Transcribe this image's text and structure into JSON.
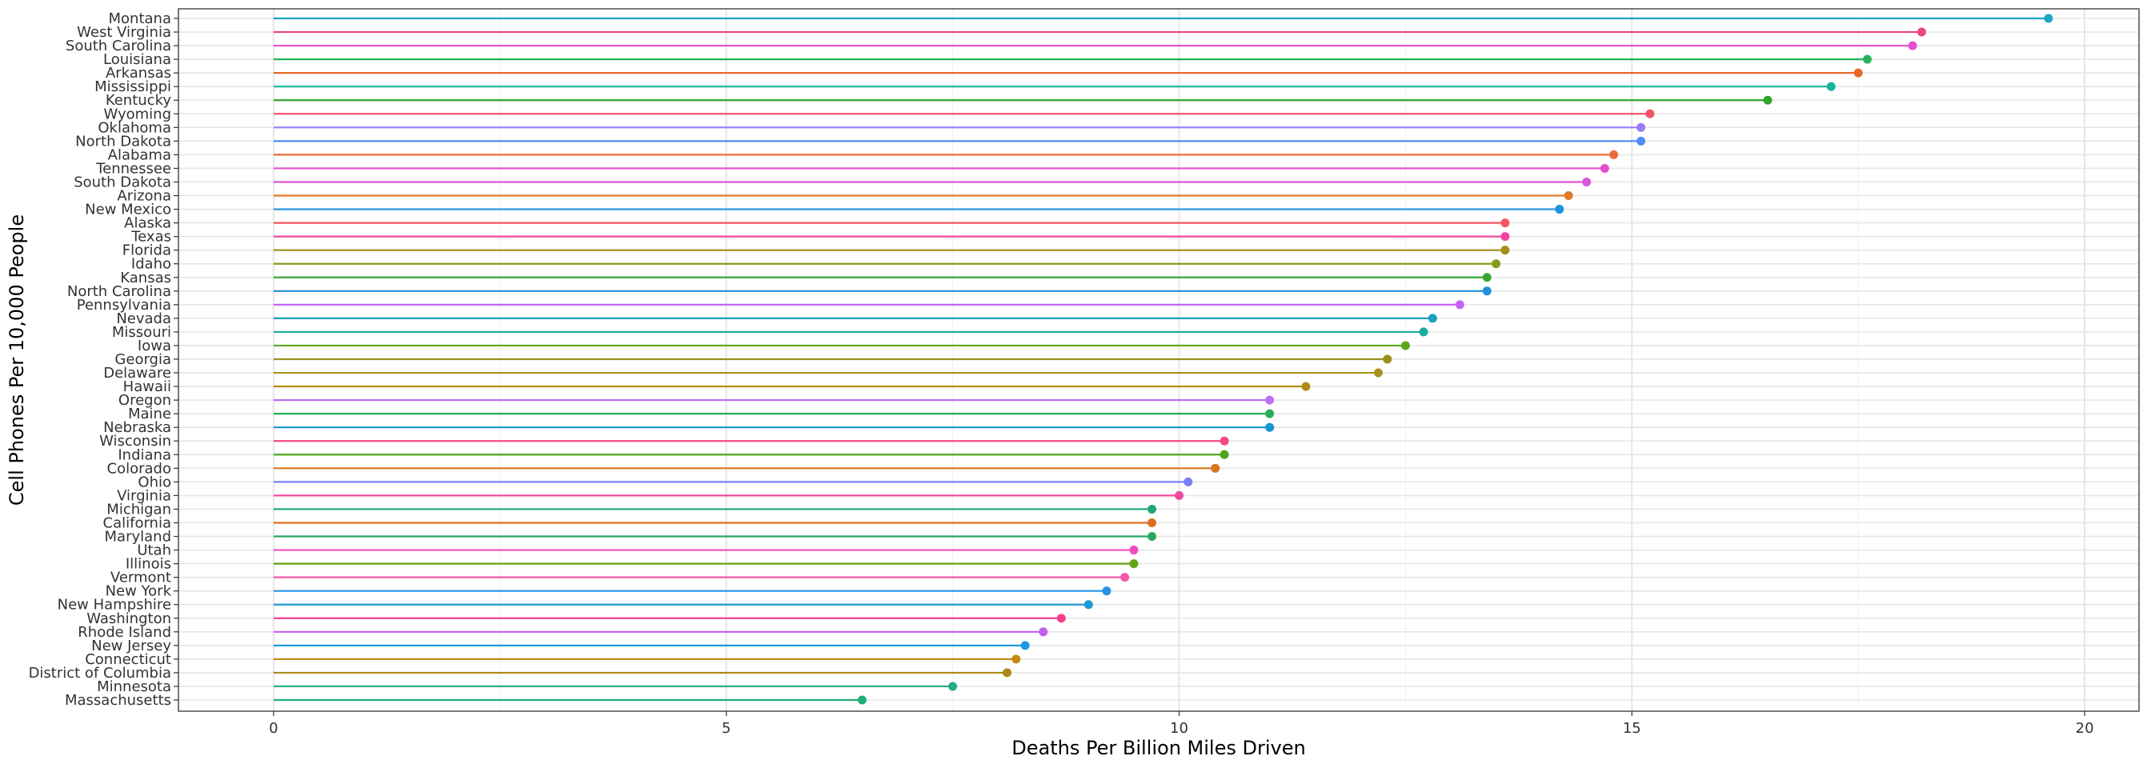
{
  "chart_data": {
    "type": "lollipop",
    "xlabel": "Deaths Per Billion Miles Driven",
    "ylabel": "Cell Phones Per 10,000 People",
    "xlim": [
      -1.05,
      20.6
    ],
    "xticks": [
      0,
      5,
      10,
      15,
      20
    ],
    "grid": true,
    "legend": "none",
    "categories": [
      "Montana",
      "West Virginia",
      "South Carolina",
      "Louisiana",
      "Arkansas",
      "Mississippi",
      "Kentucky",
      "Wyoming",
      "Oklahoma",
      "North Dakota",
      "Alabama",
      "Tennessee",
      "South Dakota",
      "Arizona",
      "New Mexico",
      "Alaska",
      "Texas",
      "Florida",
      "Idaho",
      "Kansas",
      "North Carolina",
      "Pennsylvania",
      "Nevada",
      "Missouri",
      "Iowa",
      "Georgia",
      "Delaware",
      "Hawaii",
      "Oregon",
      "Maine",
      "Nebraska",
      "Wisconsin",
      "Indiana",
      "Colorado",
      "Ohio",
      "Virginia",
      "Michigan",
      "California",
      "Maryland",
      "Utah",
      "Illinois",
      "Vermont",
      "New York",
      "New Hampshire",
      "Washington",
      "Rhode Island",
      "New Jersey",
      "Connecticut",
      "District of Columbia",
      "Minnesota",
      "Massachusetts"
    ],
    "values": [
      19.6,
      18.2,
      18.1,
      17.6,
      17.5,
      17.2,
      16.5,
      15.2,
      15.1,
      15.1,
      14.8,
      14.7,
      14.5,
      14.3,
      14.2,
      13.6,
      13.6,
      13.6,
      13.5,
      13.4,
      13.4,
      13.1,
      12.8,
      12.7,
      12.5,
      12.3,
      12.2,
      11.4,
      11.0,
      11.0,
      11.0,
      10.5,
      10.5,
      10.4,
      10.1,
      10.0,
      9.7,
      9.7,
      9.7,
      9.5,
      9.5,
      9.4,
      9.2,
      9.0,
      8.7,
      8.5,
      8.3,
      8.2,
      8.1,
      7.5,
      6.5
    ],
    "colors": [
      "#1da3c4",
      "#f0457a",
      "#e34fd0",
      "#26b35a",
      "#e8682f",
      "#17b39b",
      "#31a32a",
      "#f2526a",
      "#9a7cf4",
      "#4f8ef5",
      "#eb6e3a",
      "#e34fc9",
      "#d954d9",
      "#e07a2c",
      "#2291e0",
      "#f2575f",
      "#f245a0",
      "#a38e18",
      "#849d1d",
      "#3aa535",
      "#238fd6",
      "#c564ef",
      "#1ba1bf",
      "#19ab9d",
      "#5da71d",
      "#98911c",
      "#a6921b",
      "#b18a10",
      "#bf6ef5",
      "#27ad57",
      "#1596d1",
      "#f84a7e",
      "#4da416",
      "#d8771c",
      "#7c7ef7",
      "#f04a9e",
      "#1ca67a",
      "#e06c20",
      "#29a861",
      "#f04cc0",
      "#66a314",
      "#f556a8",
      "#2693e6",
      "#1c98d2",
      "#f53e8e",
      "#c35ff0",
      "#1e98e0",
      "#c48a14",
      "#ad8615",
      "#21ad85",
      "#1fae75"
    ]
  }
}
